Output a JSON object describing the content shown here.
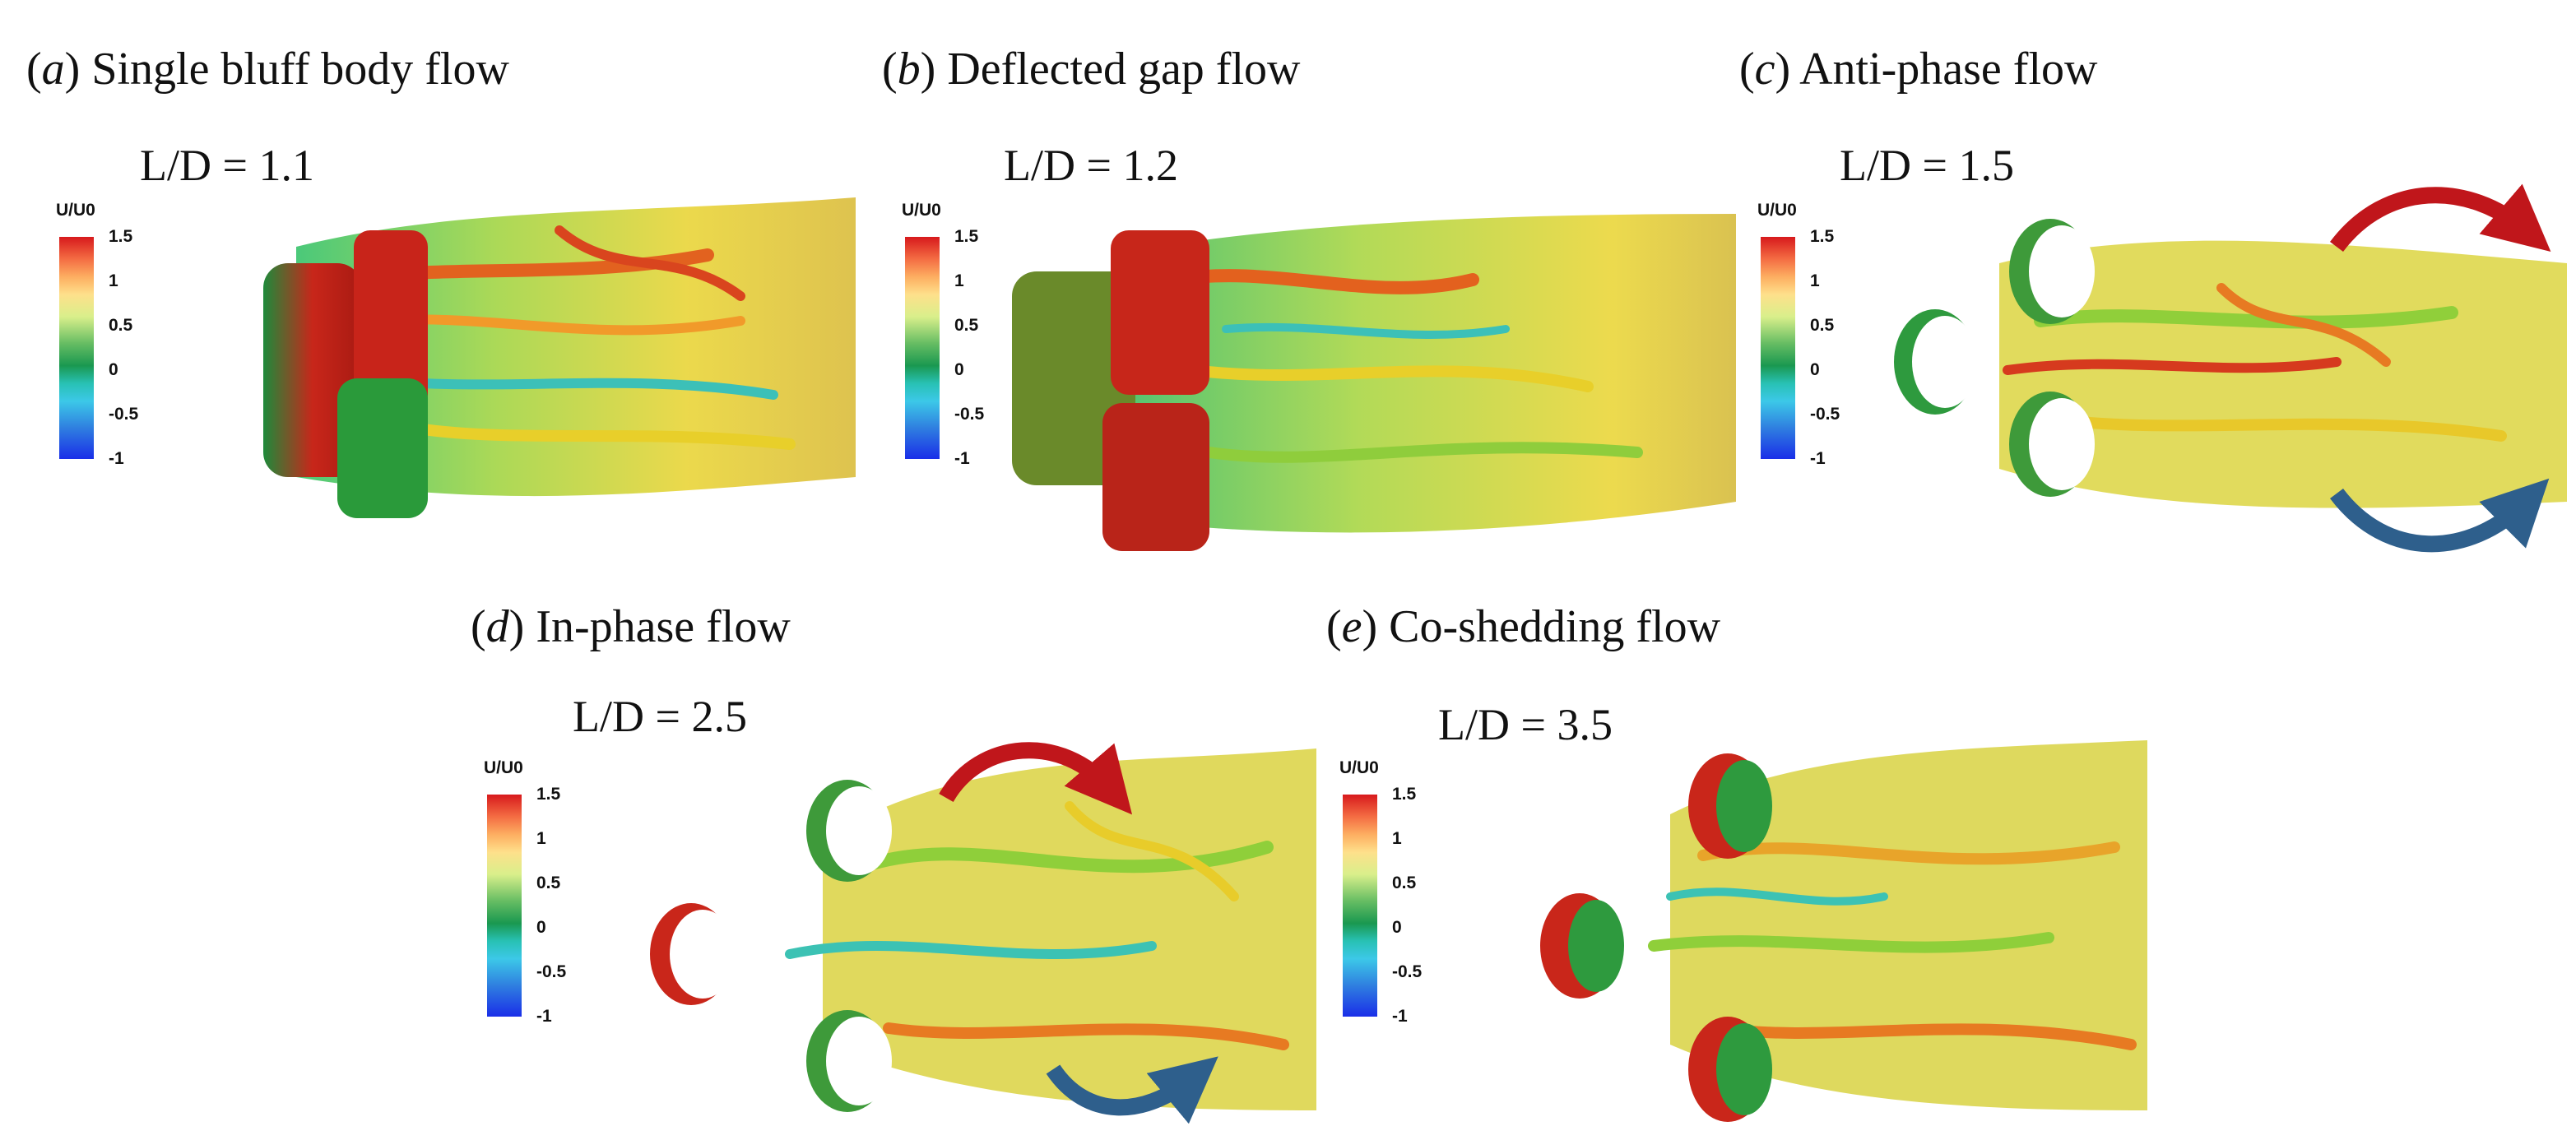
{
  "colorbar": {
    "title": "U/U0",
    "ticks": [
      "1.5",
      "1",
      "0.5",
      "0",
      "-0.5",
      "-1"
    ]
  },
  "panels": [
    {
      "letter": "a",
      "title": "Single bluff body flow",
      "ld": "L/D = 1.1"
    },
    {
      "letter": "b",
      "title": "Deflected gap flow",
      "ld": "L/D = 1.2"
    },
    {
      "letter": "c",
      "title": "Anti-phase flow",
      "ld": "L/D = 1.5"
    },
    {
      "letter": "d",
      "title": "In-phase flow",
      "ld": "L/D = 2.5"
    },
    {
      "letter": "e",
      "title": "Co-shedding flow",
      "ld": "L/D = 3.5"
    }
  ],
  "colors": {
    "arrow_red": "#c0161b",
    "arrow_blue": "#2e5f8c"
  }
}
